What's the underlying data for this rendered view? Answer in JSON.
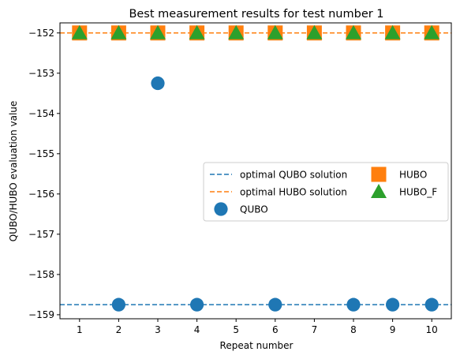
{
  "chart_data": {
    "type": "scatter",
    "title": "Best measurement results for test number 1",
    "xlabel": "Repeat number",
    "ylabel": "QUBO/HUBO evaluation value",
    "x": [
      1,
      2,
      3,
      4,
      5,
      6,
      7,
      8,
      9,
      10
    ],
    "xlim": [
      0.5,
      10.5
    ],
    "ylim": [
      -159.1,
      -151.75
    ],
    "yticks": [
      -159,
      -158,
      -157,
      -156,
      -155,
      -154,
      -153,
      -152
    ],
    "xticks": [
      1,
      2,
      3,
      4,
      5,
      6,
      7,
      8,
      9,
      10
    ],
    "grid": false,
    "legend_placement": "center-right",
    "reference_lines": [
      {
        "name": "optimal QUBO solution",
        "y": -158.75,
        "color": "#1f77b4",
        "style": "dashed"
      },
      {
        "name": "optimal HUBO solution",
        "y": -152,
        "color": "#ff7f0e",
        "style": "dashed"
      }
    ],
    "series": [
      {
        "name": "QUBO",
        "marker": "circle",
        "color": "#1f77b4",
        "values": [
          -152,
          -158.75,
          -153.25,
          -158.75,
          -152,
          -158.75,
          -152,
          -158.75,
          -158.75,
          -158.75
        ]
      },
      {
        "name": "HUBO",
        "marker": "square",
        "color": "#ff7f0e",
        "values": [
          -152,
          -152,
          -152,
          -152,
          -152,
          -152,
          -152,
          -152,
          -152,
          -152
        ]
      },
      {
        "name": "HUBO_F",
        "marker": "triangle",
        "color": "#2ca02c",
        "values": [
          -152,
          -152,
          -152,
          -152,
          -152,
          -152,
          -152,
          -152,
          -152,
          -152
        ]
      }
    ]
  }
}
